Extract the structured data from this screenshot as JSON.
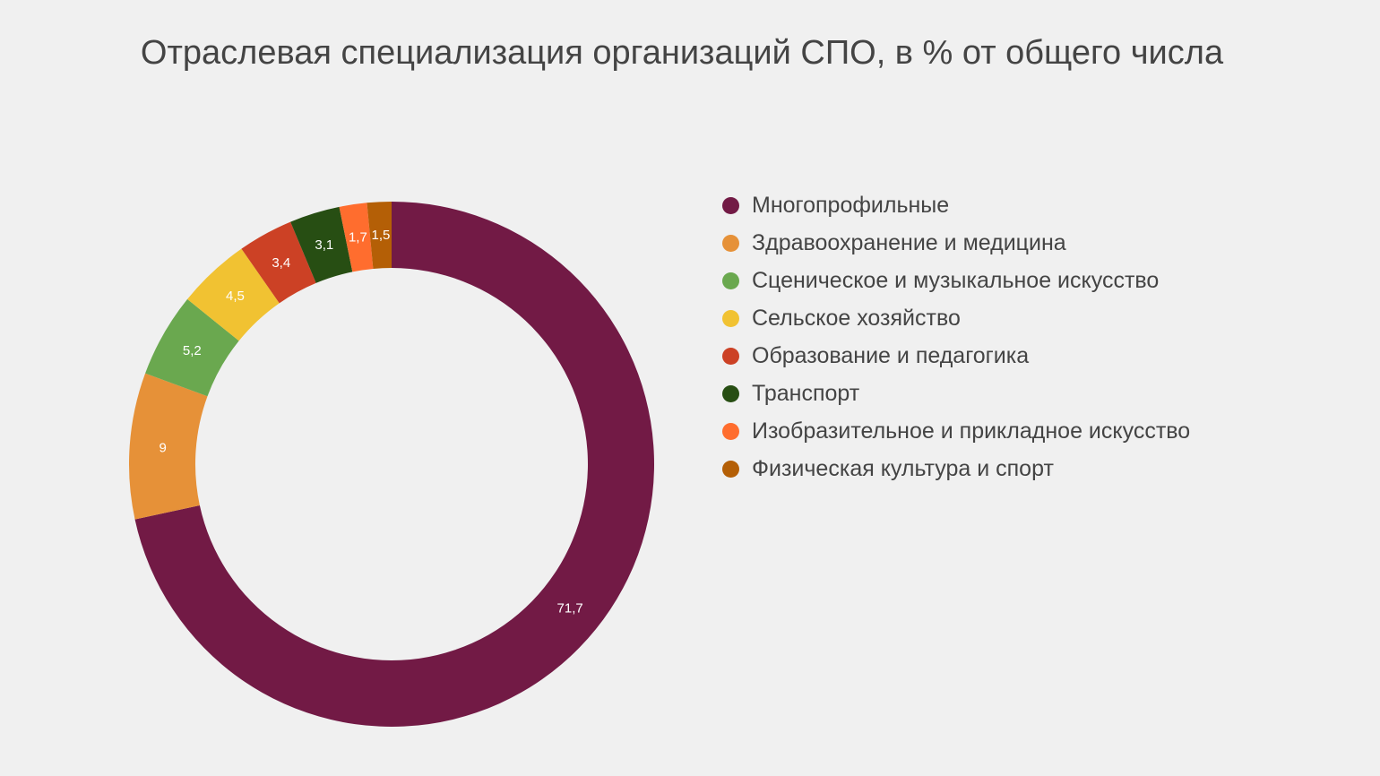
{
  "chart_data": {
    "type": "pie",
    "title": "Отраслевая специализация организаций СПО, в % от общего числа",
    "categories": [
      "Многопрофильные",
      "Здравоохранение и медицина",
      "Сценическое и музыкальное искусство",
      "Сельское хозяйство",
      "Образование и педагогика",
      "Транспорт",
      "Изобразительное и прикладное искусство",
      "Физическая культура и спорт"
    ],
    "values": [
      71.7,
      9,
      5.2,
      4.5,
      3.4,
      3.1,
      1.7,
      1.5
    ],
    "value_labels": [
      "71,7",
      "9",
      "5,2",
      "4,5",
      "3,4",
      "3,1",
      "1,7",
      "1,5"
    ],
    "colors": [
      "#721a45",
      "#e69138",
      "#6aa84f",
      "#f1c232",
      "#cc4125",
      "#274e13",
      "#ff6d2e",
      "#b45f06"
    ],
    "donut": true,
    "legend_position": "right"
  }
}
